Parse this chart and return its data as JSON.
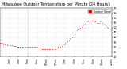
{
  "title": "Milwaukee Outdoor Temperature per Minute (24 Hours)",
  "title_fontsize": 3.5,
  "bg_color": "#ffffff",
  "line_color": "#ff0000",
  "marker": ".",
  "markersize": 1.0,
  "linestyle": "none",
  "ylim": [
    20,
    70
  ],
  "yticks": [
    20,
    25,
    30,
    35,
    40,
    45,
    50,
    55,
    60,
    65,
    70
  ],
  "ytick_labels": [
    "20",
    "25",
    "30",
    "35",
    "40",
    "45",
    "50",
    "55",
    "60",
    "65",
    "70"
  ],
  "grid_color": "#cccccc",
  "tick_fontsize": 2.5,
  "legend_label": "Outdoor Temp",
  "legend_box_color": "#ff0000",
  "x_values": [
    0,
    15,
    30,
    45,
    60,
    75,
    90,
    105,
    120,
    135,
    150,
    165,
    180,
    195,
    210,
    225,
    240,
    255,
    270,
    285,
    300,
    315,
    330,
    345,
    360,
    375,
    390,
    405,
    420,
    435,
    450,
    465,
    480,
    495,
    510,
    525,
    540,
    555,
    570,
    585,
    600,
    615,
    630,
    645,
    660,
    675,
    690,
    705,
    720,
    735,
    750,
    765,
    780,
    795,
    810,
    825,
    840,
    855,
    870,
    885,
    900,
    915,
    930,
    945,
    960,
    975,
    990,
    1005,
    1020,
    1035,
    1050,
    1065,
    1080,
    1095,
    1110,
    1125,
    1140,
    1155,
    1170,
    1185,
    1200,
    1215,
    1230,
    1245,
    1260,
    1275,
    1290,
    1305,
    1320,
    1335,
    1350,
    1365,
    1380,
    1395,
    1410,
    1425
  ],
  "y_values": [
    34,
    34,
    34,
    33,
    33,
    33,
    33,
    32,
    32,
    32,
    32,
    32,
    31,
    31,
    30,
    30,
    30,
    30,
    30,
    30,
    30,
    30,
    30,
    30,
    30,
    30,
    30,
    30,
    30,
    30,
    30,
    30,
    30,
    29,
    29,
    29,
    28,
    28,
    28,
    28,
    28,
    28,
    28,
    28,
    28,
    28,
    28,
    28,
    28,
    29,
    30,
    30,
    30,
    31,
    32,
    33,
    34,
    35,
    36,
    37,
    38,
    39,
    40,
    42,
    43,
    45,
    47,
    48,
    49,
    50,
    51,
    52,
    53,
    54,
    55,
    56,
    57,
    57,
    57,
    57,
    57,
    56,
    56,
    55,
    55,
    55,
    56,
    55,
    55,
    54,
    53,
    52,
    51,
    50,
    49,
    48
  ],
  "xtick_positions": [
    0,
    120,
    240,
    360,
    480,
    600,
    720,
    840,
    960,
    1080,
    1200,
    1320,
    1440
  ],
  "xtick_labels": [
    "12am",
    "2am",
    "4am",
    "6am",
    "8am",
    "10am",
    "12pm",
    "2pm",
    "4pm",
    "6pm",
    "8pm",
    "10pm",
    "12am"
  ],
  "xtick_fontsize": 2.2,
  "vline_x": 360,
  "vline_color": "#aaaaaa",
  "vline_style": "dotted"
}
